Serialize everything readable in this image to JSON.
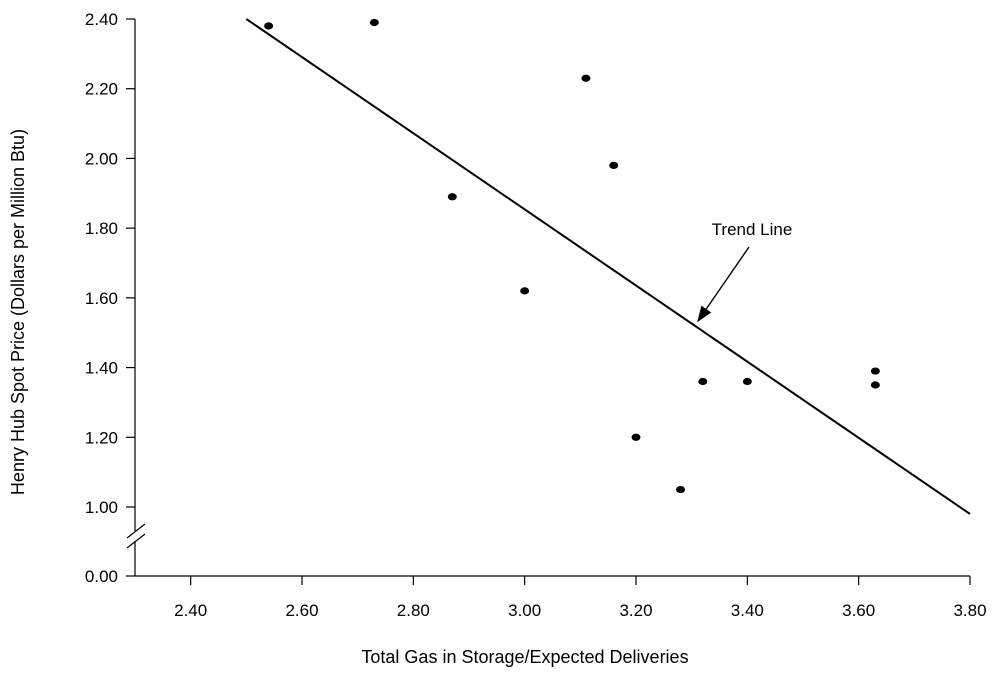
{
  "chart_data": {
    "type": "scatter",
    "title": "",
    "xlabel": "Total Gas in Storage/Expected Deliveries",
    "ylabel": "Henry Hub Spot Price (Dollars per Million Btu)",
    "xlim": [
      2.3,
      3.8
    ],
    "ylim": [
      1.0,
      2.4
    ],
    "x_ticks": [
      2.4,
      2.6,
      2.8,
      3.0,
      3.2,
      3.4,
      3.6,
      3.8
    ],
    "x_tick_labels": [
      "2.40",
      "2.60",
      "2.80",
      "3.00",
      "3.20",
      "3.40",
      "3.60",
      "3.80"
    ],
    "y_ticks": [
      1.0,
      1.2,
      1.4,
      1.6,
      1.8,
      2.0,
      2.2,
      2.4
    ],
    "y_tick_labels": [
      "1.00",
      "1.20",
      "1.40",
      "1.60",
      "1.80",
      "2.00",
      "2.20",
      "2.40"
    ],
    "y_break_label": "0.00",
    "axis_break": true,
    "grid": false,
    "legend": "none",
    "marker_color": "#000000",
    "series": [
      {
        "points": [
          {
            "x": 2.54,
            "y": 2.38
          },
          {
            "x": 2.73,
            "y": 2.39
          },
          {
            "x": 2.87,
            "y": 1.89
          },
          {
            "x": 3.0,
            "y": 1.62
          },
          {
            "x": 3.11,
            "y": 2.23
          },
          {
            "x": 3.16,
            "y": 1.98
          },
          {
            "x": 3.2,
            "y": 1.2
          },
          {
            "x": 3.28,
            "y": 1.05
          },
          {
            "x": 3.32,
            "y": 1.36
          },
          {
            "x": 3.4,
            "y": 1.36
          },
          {
            "x": 3.63,
            "y": 1.39
          },
          {
            "x": 3.63,
            "y": 1.35
          }
        ]
      }
    ],
    "trend_line": {
      "x1": 2.5,
      "y1": 2.4,
      "x2": 3.8,
      "y2": 0.98
    },
    "annotations": [
      {
        "text": "Trend Line",
        "target_x": 3.31,
        "target_y": 1.53
      }
    ]
  }
}
